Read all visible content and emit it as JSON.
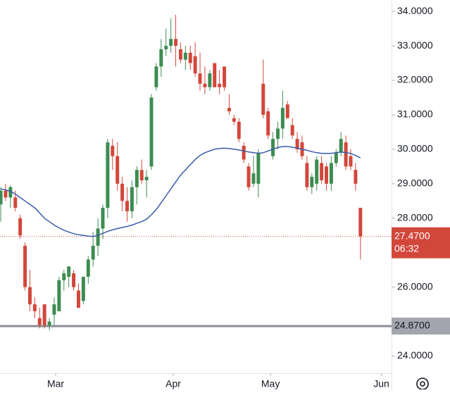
{
  "chart_data": {
    "type": "candlestick",
    "up_color": "#3d8c52",
    "down_color": "#d2473b",
    "ma_color": "#3a5bab",
    "xlim": [
      -0.15,
      80.4
    ],
    "xticks": [
      {
        "value": 11.3,
        "label": "Mar"
      },
      {
        "value": 35.5,
        "label": "Apr"
      },
      {
        "value": 55.5,
        "label": "May"
      },
      {
        "value": 78.3,
        "label": "Jun"
      }
    ],
    "ylim": [
      23.5,
      34.33
    ],
    "yticks": [
      {
        "value": 24,
        "label": "24.0000"
      },
      {
        "value": 26,
        "label": "26.0000"
      },
      {
        "value": 28,
        "label": "28.0000"
      },
      {
        "value": 29,
        "label": "29.0000"
      },
      {
        "value": 30,
        "label": "30.0000"
      },
      {
        "value": 31,
        "label": "31.0000"
      },
      {
        "value": 32,
        "label": "32.0000"
      },
      {
        "value": 33,
        "label": "33.0000"
      },
      {
        "value": 34,
        "label": "34.0000"
      }
    ],
    "open": [
      28.4,
      28.8,
      28.6,
      28.6,
      28.0,
      27.2,
      26.0,
      25.5,
      25.1,
      25.5,
      24.9,
      25.2,
      25.3,
      26.2,
      26.3,
      26.4,
      25.9,
      25.6,
      26.3,
      26.8,
      27.2,
      27.7,
      28.3,
      30.1,
      29.8,
      29.0,
      28.5,
      28.2,
      28.9,
      29.4,
      29.1,
      29.5,
      31.8,
      32.4,
      32.9,
      33.0,
      33.2,
      32.9,
      32.6,
      32.8,
      32.7,
      32.2,
      31.9,
      31.8,
      32.5,
      31.9,
      32.4,
      31.2,
      30.9,
      30.8,
      30.1,
      29.5,
      29.0,
      29.0,
      31.9,
      31.1,
      29.8,
      30.3,
      30.6,
      31.3,
      30.7,
      30.3,
      30.2,
      29.6,
      28.9,
      29.0,
      29.6,
      29.5,
      29.0,
      29.6,
      29.9,
      30.2,
      29.8,
      29.4,
      28.3
    ],
    "high": [
      28.9,
      29.0,
      28.95,
      28.8,
      28.1,
      27.3,
      26.5,
      25.7,
      25.4,
      25.5,
      25.1,
      25.7,
      26.3,
      26.5,
      26.6,
      26.5,
      26.1,
      26.3,
      26.9,
      27.6,
      28.0,
      28.4,
      30.3,
      30.3,
      30.2,
      29.2,
      28.9,
      29.1,
      29.5,
      29.7,
      29.4,
      31.6,
      32.5,
      33.2,
      33.5,
      33.8,
      33.9,
      33.1,
      33.0,
      33.0,
      33.1,
      32.8,
      32.4,
      32.3,
      32.5,
      32.3,
      32.4,
      31.6,
      31.0,
      30.9,
      30.2,
      29.6,
      29.8,
      30.0,
      32.6,
      31.2,
      30.5,
      30.8,
      31.7,
      31.4,
      30.9,
      30.5,
      30.4,
      29.8,
      29.3,
      29.8,
      29.8,
      29.6,
      29.8,
      30.0,
      30.5,
      30.4,
      30.0,
      29.6,
      28.3
    ],
    "low": [
      27.9,
      28.5,
      28.3,
      28.2,
      27.4,
      25.9,
      25.3,
      25.1,
      24.8,
      24.8,
      24.75,
      24.9,
      25.3,
      25.9,
      26.0,
      25.9,
      25.4,
      25.5,
      26.1,
      26.6,
      26.9,
      27.4,
      28.0,
      29.4,
      28.8,
      28.2,
      27.9,
      28.0,
      28.4,
      29.0,
      28.6,
      29.4,
      31.7,
      32.1,
      32.7,
      32.8,
      32.4,
      32.5,
      32.3,
      32.3,
      32.1,
      31.7,
      31.6,
      31.7,
      31.8,
      31.6,
      31.7,
      31.0,
      30.7,
      30.2,
      29.6,
      28.8,
      28.9,
      28.6,
      30.9,
      30.3,
      29.7,
      30.0,
      30.3,
      30.9,
      30.3,
      29.9,
      29.7,
      28.8,
      28.7,
      28.8,
      29.0,
      28.8,
      28.8,
      29.5,
      29.8,
      29.4,
      29.4,
      28.8,
      26.8
    ],
    "close": [
      28.8,
      28.6,
      28.9,
      28.3,
      27.5,
      26.0,
      25.5,
      25.3,
      24.9,
      24.9,
      25.0,
      25.5,
      26.2,
      26.4,
      26.6,
      26.0,
      25.4,
      26.3,
      26.8,
      27.2,
      27.7,
      28.3,
      30.2,
      29.8,
      29.0,
      28.5,
      28.2,
      28.9,
      29.4,
      29.1,
      29.2,
      31.5,
      32.4,
      32.9,
      33.0,
      33.2,
      33.0,
      32.6,
      32.8,
      32.5,
      32.2,
      31.9,
      31.8,
      32.2,
      31.8,
      31.8,
      31.8,
      31.1,
      30.8,
      30.3,
      29.7,
      28.9,
      29.3,
      29.9,
      31.0,
      30.4,
      30.3,
      30.6,
      31.2,
      30.9,
      30.4,
      30.0,
      29.8,
      28.9,
      29.2,
      29.7,
      29.1,
      29.0,
      29.6,
      29.9,
      30.3,
      29.5,
      29.5,
      29.0,
      27.47
    ],
    "ma": [
      28.85,
      28.82,
      28.78,
      28.7,
      28.6,
      28.5,
      28.4,
      28.3,
      28.15,
      28.0,
      27.9,
      27.8,
      27.72,
      27.65,
      27.6,
      27.55,
      27.52,
      27.5,
      27.48,
      27.47,
      27.5,
      27.56,
      27.62,
      27.66,
      27.7,
      27.73,
      27.76,
      27.8,
      27.85,
      27.9,
      27.97,
      28.1,
      28.25,
      28.45,
      28.65,
      28.85,
      29.05,
      29.25,
      29.4,
      29.55,
      29.7,
      29.82,
      29.9,
      29.95,
      30.0,
      30.02,
      30.03,
      30.02,
      30.0,
      29.98,
      29.95,
      29.92,
      29.9,
      29.88,
      29.9,
      29.95,
      30.0,
      30.05,
      30.08,
      30.08,
      30.06,
      30.03,
      30.0,
      29.97,
      29.93,
      29.9,
      29.88,
      29.88,
      29.88,
      29.9,
      29.92,
      29.9,
      29.88,
      29.82,
      29.75
    ],
    "last_price": {
      "value": 27.47,
      "label": "27.4700"
    },
    "countdown": "06:32",
    "level": {
      "value": 24.87,
      "label": "24.8700"
    }
  }
}
